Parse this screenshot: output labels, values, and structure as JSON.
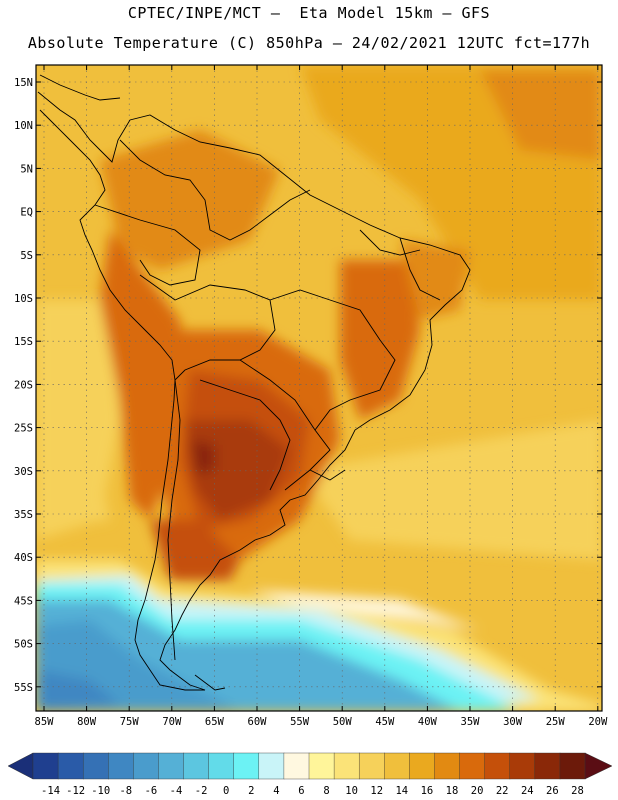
{
  "header": {
    "title_line1": "CPTEC/INPE/MCT –  Eta Model 15km – GFS",
    "title_line2": "Absolute Temperature (C) 850hPa – 24/02/2021 12UTC fct=177h"
  },
  "map": {
    "lat_labels": [
      "15N",
      "10N",
      "5N",
      "EQ",
      "5S",
      "10S",
      "15S",
      "20S",
      "25S",
      "30S",
      "35S",
      "40S",
      "45S",
      "50S",
      "55S"
    ],
    "lon_labels": [
      "85W",
      "80W",
      "75W",
      "70W",
      "65W",
      "60W",
      "55W",
      "50W",
      "45W",
      "40W",
      "35W",
      "30W",
      "25W",
      "20W"
    ]
  },
  "colorbar": {
    "labels": [
      "-14",
      "-12",
      "-10",
      "-8",
      "-6",
      "-4",
      "-2",
      "0",
      "2",
      "4",
      "6",
      "8",
      "10",
      "12",
      "14",
      "16",
      "18",
      "20",
      "22",
      "24",
      "26",
      "28"
    ],
    "colors": [
      "#1f3f8f",
      "#2a5ba8",
      "#3571b5",
      "#3f87c2",
      "#4a9ccc",
      "#55b0d6",
      "#5cc6e0",
      "#62dbe9",
      "#6cf2f4",
      "#c9f4f8",
      "#fff8e0",
      "#fff59a",
      "#fbe378",
      "#f6d15a",
      "#f0bf3c",
      "#eaa91f",
      "#e28a12",
      "#d96a0c",
      "#c5500a",
      "#a93b08",
      "#8a2808",
      "#6c1a0a"
    ]
  }
}
